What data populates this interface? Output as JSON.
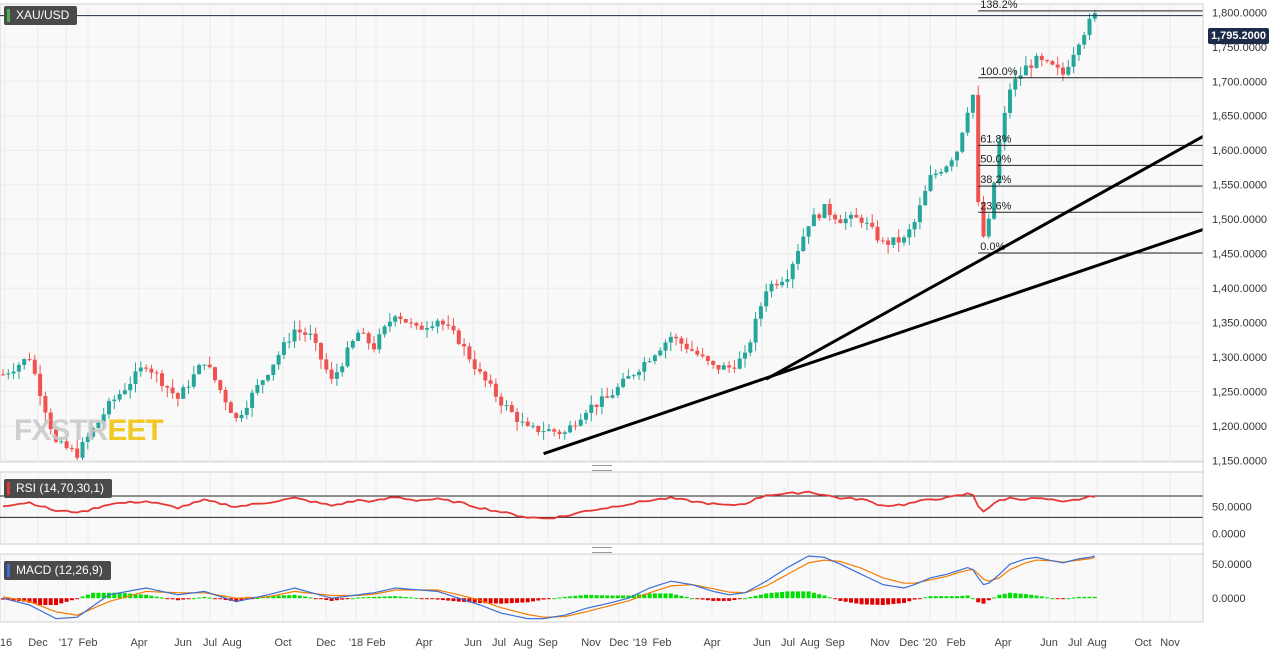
{
  "symbol": "XAU/USD",
  "current_price_label": "1,795.2000",
  "watermark": {
    "part1": "FXSTR",
    "part2": "EET"
  },
  "colors": {
    "up": "#26a69a",
    "down": "#ef5350",
    "rsi": "#e53935",
    "macd": "#3b6fd6",
    "signal": "#f57c00",
    "hist_up": "#00e000",
    "hist_down": "#e00000",
    "trend": "#000000"
  },
  "chart_data": [
    {
      "type": "candlestick",
      "title": "XAU/USD",
      "y_ticks": [
        "1,800.0000",
        "1,750.0000",
        "1,700.0000",
        "1,650.0000",
        "1,600.0000",
        "1,550.0000",
        "1,500.0000",
        "1,450.0000",
        "1,400.0000",
        "1,350.0000",
        "1,300.0000",
        "1,250.0000",
        "1,200.0000",
        "1,150.0000"
      ],
      "ylim": [
        1148,
        1812
      ],
      "x_tick_labels": [
        "'16",
        "Dec",
        "'17",
        "Feb",
        "Apr",
        "Jun",
        "Jul",
        "Aug",
        "Oct",
        "Dec",
        "'18",
        "Feb",
        "Apr",
        "Jun",
        "Jul",
        "Aug",
        "Sep",
        "Nov",
        "Dec",
        "'19",
        "Feb",
        "Apr",
        "Jun",
        "Jul",
        "Aug",
        "Sep",
        "Nov",
        "Dec",
        "'20",
        "Feb",
        "Apr",
        "Jun",
        "Jul",
        "Aug",
        "Oct",
        "Nov"
      ],
      "close_path": [
        [
          0,
          1275
        ],
        [
          5,
          1300
        ],
        [
          10,
          1175
        ],
        [
          14,
          1160
        ],
        [
          20,
          1230
        ],
        [
          27,
          1290
        ],
        [
          33,
          1240
        ],
        [
          38,
          1295
        ],
        [
          44,
          1210
        ],
        [
          50,
          1280
        ],
        [
          55,
          1340
        ],
        [
          58,
          1330
        ],
        [
          62,
          1265
        ],
        [
          67,
          1335
        ],
        [
          70,
          1315
        ],
        [
          74,
          1365
        ],
        [
          78,
          1340
        ],
        [
          82,
          1355
        ],
        [
          86,
          1325
        ],
        [
          90,
          1275
        ],
        [
          94,
          1235
        ],
        [
          99,
          1195
        ],
        [
          102,
          1195
        ],
        [
          106,
          1190
        ],
        [
          110,
          1225
        ],
        [
          114,
          1240
        ],
        [
          118,
          1270
        ],
        [
          122,
          1300
        ],
        [
          126,
          1330
        ],
        [
          130,
          1310
        ],
        [
          134,
          1285
        ],
        [
          137,
          1285
        ],
        [
          140,
          1300
        ],
        [
          144,
          1400
        ],
        [
          148,
          1420
        ],
        [
          152,
          1495
        ],
        [
          155,
          1515
        ],
        [
          158,
          1500
        ],
        [
          162,
          1500
        ],
        [
          166,
          1465
        ],
        [
          170,
          1470
        ],
        [
          172,
          1495
        ],
        [
          175,
          1560
        ],
        [
          178,
          1580
        ],
        [
          180,
          1600
        ],
        [
          182,
          1660
        ],
        [
          183,
          1680
        ],
        [
          184,
          1520
        ],
        [
          185,
          1475
        ],
        [
          186,
          1495
        ],
        [
          188,
          1610
        ],
        [
          190,
          1690
        ],
        [
          193,
          1720
        ],
        [
          195,
          1730
        ],
        [
          198,
          1720
        ],
        [
          200,
          1710
        ],
        [
          203,
          1760
        ],
        [
          205,
          1785
        ],
        [
          206,
          1795
        ]
      ],
      "series": [
        {
          "name": "XAU/USD",
          "values": "close_path (weekly candles)"
        }
      ],
      "current_price": 1795.2,
      "fibonacci": [
        {
          "label": "138.2%",
          "value": 1802
        },
        {
          "label": "100.0%",
          "value": 1705
        },
        {
          "label": "61.8%",
          "value": 1607
        },
        {
          "label": "50.0%",
          "value": 1578
        },
        {
          "label": "38.2%",
          "value": 1548
        },
        {
          "label": "23.6%",
          "value": 1510
        },
        {
          "label": "0.0%",
          "value": 1451
        }
      ],
      "trendlines": [
        {
          "from": [
            102,
            1160
          ],
          "to": [
            230,
            1485
          ]
        },
        {
          "from": [
            144,
            1268
          ],
          "to": [
            230,
            1620
          ]
        }
      ]
    },
    {
      "type": "line",
      "title": "RSI (14,70,30,1)",
      "y_ticks": [
        "50.0000",
        "0.0000"
      ],
      "ylim": [
        0,
        100
      ],
      "levels": [
        70,
        30
      ],
      "series": [
        {
          "name": "RSI (14,70,30,1)",
          "values": "rsi_path"
        }
      ],
      "rsi_path": [
        [
          0,
          52
        ],
        [
          5,
          58
        ],
        [
          10,
          42
        ],
        [
          15,
          40
        ],
        [
          20,
          55
        ],
        [
          27,
          60
        ],
        [
          33,
          48
        ],
        [
          38,
          62
        ],
        [
          44,
          50
        ],
        [
          50,
          58
        ],
        [
          55,
          66
        ],
        [
          58,
          60
        ],
        [
          62,
          52
        ],
        [
          67,
          62
        ],
        [
          70,
          60
        ],
        [
          74,
          68
        ],
        [
          78,
          62
        ],
        [
          82,
          64
        ],
        [
          86,
          58
        ],
        [
          90,
          48
        ],
        [
          94,
          40
        ],
        [
          99,
          30
        ],
        [
          102,
          28
        ],
        [
          106,
          32
        ],
        [
          110,
          42
        ],
        [
          114,
          48
        ],
        [
          118,
          55
        ],
        [
          122,
          62
        ],
        [
          126,
          66
        ],
        [
          130,
          60
        ],
        [
          134,
          55
        ],
        [
          137,
          52
        ],
        [
          140,
          56
        ],
        [
          144,
          72
        ],
        [
          148,
          74
        ],
        [
          152,
          78
        ],
        [
          155,
          72
        ],
        [
          158,
          66
        ],
        [
          162,
          64
        ],
        [
          166,
          52
        ],
        [
          170,
          54
        ],
        [
          172,
          58
        ],
        [
          175,
          64
        ],
        [
          178,
          66
        ],
        [
          180,
          70
        ],
        [
          182,
          74
        ],
        [
          183,
          72
        ],
        [
          184,
          52
        ],
        [
          185,
          42
        ],
        [
          186,
          48
        ],
        [
          188,
          62
        ],
        [
          190,
          66
        ],
        [
          193,
          64
        ],
        [
          195,
          66
        ],
        [
          198,
          62
        ],
        [
          200,
          58
        ],
        [
          203,
          64
        ],
        [
          205,
          68
        ],
        [
          206,
          70
        ]
      ]
    },
    {
      "type": "line",
      "title": "MACD (12,26,9)",
      "y_ticks": [
        "50.0000",
        "0.0000"
      ],
      "ylim": [
        -35,
        65
      ],
      "series": [
        {
          "name": "MACD",
          "values": "macd_path"
        },
        {
          "name": "Signal",
          "values": "signal_path"
        },
        {
          "name": "Histogram",
          "values": "hist"
        }
      ],
      "macd_path": [
        [
          0,
          0
        ],
        [
          5,
          -10
        ],
        [
          10,
          -30
        ],
        [
          14,
          -28
        ],
        [
          20,
          5
        ],
        [
          27,
          15
        ],
        [
          33,
          5
        ],
        [
          38,
          10
        ],
        [
          44,
          -5
        ],
        [
          50,
          5
        ],
        [
          55,
          15
        ],
        [
          62,
          0
        ],
        [
          67,
          5
        ],
        [
          70,
          8
        ],
        [
          74,
          15
        ],
        [
          82,
          10
        ],
        [
          86,
          0
        ],
        [
          90,
          -10
        ],
        [
          94,
          -22
        ],
        [
          99,
          -30
        ],
        [
          102,
          -30
        ],
        [
          106,
          -25
        ],
        [
          110,
          -15
        ],
        [
          114,
          -8
        ],
        [
          118,
          0
        ],
        [
          122,
          15
        ],
        [
          126,
          25
        ],
        [
          130,
          20
        ],
        [
          134,
          10
        ],
        [
          137,
          5
        ],
        [
          140,
          8
        ],
        [
          144,
          25
        ],
        [
          148,
          45
        ],
        [
          152,
          62
        ],
        [
          155,
          60
        ],
        [
          158,
          50
        ],
        [
          162,
          35
        ],
        [
          166,
          20
        ],
        [
          170,
          15
        ],
        [
          172,
          20
        ],
        [
          175,
          30
        ],
        [
          178,
          35
        ],
        [
          180,
          40
        ],
        [
          182,
          45
        ],
        [
          183,
          42
        ],
        [
          184,
          30
        ],
        [
          185,
          20
        ],
        [
          186,
          22
        ],
        [
          188,
          35
        ],
        [
          190,
          50
        ],
        [
          193,
          58
        ],
        [
          195,
          60
        ],
        [
          198,
          55
        ],
        [
          200,
          52
        ],
        [
          203,
          58
        ],
        [
          205,
          60
        ],
        [
          206,
          62
        ]
      ],
      "signal_path": [
        [
          0,
          2
        ],
        [
          5,
          -5
        ],
        [
          10,
          -20
        ],
        [
          14,
          -25
        ],
        [
          20,
          -5
        ],
        [
          27,
          10
        ],
        [
          33,
          8
        ],
        [
          38,
          8
        ],
        [
          44,
          0
        ],
        [
          50,
          2
        ],
        [
          55,
          10
        ],
        [
          62,
          4
        ],
        [
          67,
          4
        ],
        [
          70,
          6
        ],
        [
          74,
          12
        ],
        [
          82,
          12
        ],
        [
          86,
          5
        ],
        [
          90,
          -3
        ],
        [
          94,
          -14
        ],
        [
          99,
          -24
        ],
        [
          102,
          -28
        ],
        [
          106,
          -27
        ],
        [
          110,
          -20
        ],
        [
          114,
          -12
        ],
        [
          118,
          -4
        ],
        [
          122,
          8
        ],
        [
          126,
          18
        ],
        [
          130,
          20
        ],
        [
          134,
          14
        ],
        [
          137,
          9
        ],
        [
          140,
          8
        ],
        [
          144,
          18
        ],
        [
          148,
          35
        ],
        [
          152,
          52
        ],
        [
          155,
          56
        ],
        [
          158,
          54
        ],
        [
          162,
          44
        ],
        [
          166,
          30
        ],
        [
          170,
          22
        ],
        [
          172,
          22
        ],
        [
          175,
          27
        ],
        [
          178,
          32
        ],
        [
          180,
          37
        ],
        [
          182,
          41
        ],
        [
          183,
          42
        ],
        [
          184,
          36
        ],
        [
          185,
          28
        ],
        [
          186,
          25
        ],
        [
          188,
          30
        ],
        [
          190,
          42
        ],
        [
          193,
          52
        ],
        [
          195,
          56
        ],
        [
          198,
          55
        ],
        [
          200,
          53
        ],
        [
          203,
          56
        ],
        [
          205,
          58
        ],
        [
          206,
          60
        ]
      ],
      "hist": [
        [
          0,
          -2
        ],
        [
          4,
          -5
        ],
        [
          7,
          -10
        ],
        [
          10,
          -10
        ],
        [
          13,
          -3
        ],
        [
          17,
          8
        ],
        [
          22,
          8
        ],
        [
          27,
          5
        ],
        [
          33,
          -3
        ],
        [
          38,
          2
        ],
        [
          44,
          -5
        ],
        [
          50,
          3
        ],
        [
          55,
          5
        ],
        [
          62,
          -4
        ],
        [
          67,
          1
        ],
        [
          70,
          2
        ],
        [
          74,
          3
        ],
        [
          82,
          -2
        ],
        [
          86,
          -5
        ],
        [
          90,
          -7
        ],
        [
          94,
          -8
        ],
        [
          99,
          -6
        ],
        [
          102,
          -2
        ],
        [
          106,
          2
        ],
        [
          110,
          5
        ],
        [
          114,
          4
        ],
        [
          118,
          4
        ],
        [
          122,
          7
        ],
        [
          126,
          7
        ],
        [
          130,
          0
        ],
        [
          134,
          -4
        ],
        [
          137,
          -4
        ],
        [
          140,
          0
        ],
        [
          144,
          7
        ],
        [
          148,
          10
        ],
        [
          152,
          10
        ],
        [
          155,
          4
        ],
        [
          158,
          -4
        ],
        [
          162,
          -9
        ],
        [
          166,
          -10
        ],
        [
          170,
          -7
        ],
        [
          172,
          -2
        ],
        [
          175,
          3
        ],
        [
          178,
          3
        ],
        [
          180,
          3
        ],
        [
          182,
          4
        ],
        [
          183,
          0
        ],
        [
          184,
          -6
        ],
        [
          185,
          -8
        ],
        [
          186,
          -3
        ],
        [
          188,
          5
        ],
        [
          190,
          8
        ],
        [
          193,
          6
        ],
        [
          195,
          4
        ],
        [
          198,
          0
        ],
        [
          200,
          -1
        ],
        [
          203,
          2
        ],
        [
          205,
          2
        ],
        [
          206,
          2
        ]
      ]
    }
  ]
}
